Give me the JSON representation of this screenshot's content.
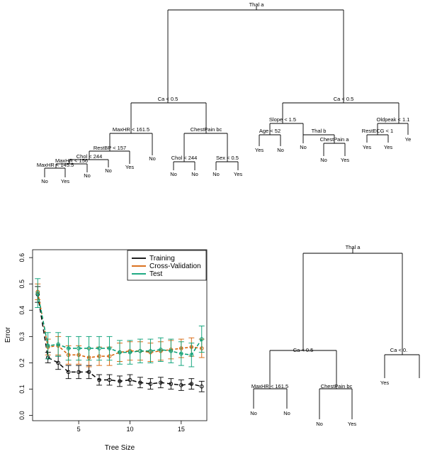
{
  "colors": {
    "training": "#000000",
    "cross_validation": "#D55E00",
    "test": "#009E73"
  },
  "top_tree": {
    "nodes": [
      {
        "id": "root",
        "label": "Thal a"
      },
      {
        "id": "L",
        "label": "Ca < 0.5"
      },
      {
        "id": "R",
        "label": "Ca < 0.5"
      },
      {
        "id": "LL",
        "label": "MaxHR < 161.5"
      },
      {
        "id": "LR",
        "label": "ChestPain bc"
      },
      {
        "id": "LLL",
        "label": "RestBP < 157"
      },
      {
        "id": "LLLL",
        "label": "Chol < 244"
      },
      {
        "id": "LLLLL",
        "label": "MaxHR < 156"
      },
      {
        "id": "LLLLLL",
        "label": "MaxHR < 145.5"
      },
      {
        "id": "LRL",
        "label": "Chol < 244"
      },
      {
        "id": "LRR",
        "label": "Sex < 0.5"
      },
      {
        "id": "RL",
        "label": "Slope < 1.5"
      },
      {
        "id": "RR",
        "label": "Oldpeak < 1.1"
      },
      {
        "id": "RLL",
        "label": "Age < 52"
      },
      {
        "id": "RLR",
        "label": "Thal b"
      },
      {
        "id": "RLRR",
        "label": "ChestPain a"
      },
      {
        "id": "RRL",
        "label": "RestECG < 1"
      }
    ],
    "leaves": [
      {
        "id": "t1",
        "label": "No"
      },
      {
        "id": "t2",
        "label": "Yes"
      },
      {
        "id": "t3",
        "label": "No"
      },
      {
        "id": "t4",
        "label": "No"
      },
      {
        "id": "t5",
        "label": "Yes"
      },
      {
        "id": "t6",
        "label": "No"
      },
      {
        "id": "t7",
        "label": "No"
      },
      {
        "id": "t8",
        "label": "No"
      },
      {
        "id": "t9",
        "label": "No"
      },
      {
        "id": "t10",
        "label": "Yes"
      },
      {
        "id": "t11",
        "label": "Yes"
      },
      {
        "id": "t12",
        "label": "No"
      },
      {
        "id": "t13",
        "label": "No"
      },
      {
        "id": "t14",
        "label": "No"
      },
      {
        "id": "t15",
        "label": "Yes"
      },
      {
        "id": "t16",
        "label": "Yes"
      },
      {
        "id": "t17",
        "label": "Yes"
      },
      {
        "id": "t18",
        "label": "Ye"
      }
    ]
  },
  "pruned_tree": {
    "nodes": [
      {
        "id": "root",
        "label": "Thal a"
      },
      {
        "id": "L",
        "label": "Ca < 0.5"
      },
      {
        "id": "R",
        "label": "Ca < 0."
      },
      {
        "id": "LL",
        "label": "MaxHR < 161.5"
      },
      {
        "id": "LR",
        "label": "ChestPain bc"
      }
    ],
    "leaves": [
      {
        "id": "p1",
        "label": "No"
      },
      {
        "id": "p2",
        "label": "No"
      },
      {
        "id": "p3",
        "label": "No"
      },
      {
        "id": "p4",
        "label": "Yes"
      },
      {
        "id": "p5",
        "label": "Yes"
      }
    ]
  },
  "chart_data": {
    "type": "line",
    "xlabel": "Tree Size",
    "ylabel": "Error",
    "xlim": [
      0.5,
      17.5
    ],
    "ylim": [
      -0.02,
      0.63
    ],
    "xticks": [
      5,
      10,
      15
    ],
    "yticks": [
      0.0,
      0.1,
      0.2,
      0.3,
      0.4,
      0.5,
      0.6
    ],
    "ytick_labels": [
      "0.0",
      "0.1",
      "0.2",
      "0.3",
      "0.4",
      "0.5",
      "0.6"
    ],
    "grid": false,
    "legend_position": "top-right",
    "x": [
      1,
      2,
      3,
      4,
      5,
      6,
      7,
      8,
      9,
      10,
      11,
      12,
      13,
      14,
      15,
      16,
      17
    ],
    "series": [
      {
        "name": "Training",
        "color_key": "training",
        "dash": "6,4",
        "values": [
          0.46,
          0.22,
          0.2,
          0.165,
          0.165,
          0.165,
          0.135,
          0.135,
          0.13,
          0.135,
          0.125,
          0.12,
          0.125,
          0.12,
          0.115,
          0.12,
          0.11
        ],
        "err": [
          0.03,
          0.02,
          0.025,
          0.025,
          0.025,
          0.025,
          0.02,
          0.02,
          0.02,
          0.02,
          0.02,
          0.02,
          0.02,
          0.02,
          0.02,
          0.02,
          0.02
        ]
      },
      {
        "name": "Cross-Validation",
        "color_key": "cross_validation",
        "dash": "4,3",
        "values": [
          0.47,
          0.26,
          0.265,
          0.23,
          0.23,
          0.22,
          0.225,
          0.225,
          0.24,
          0.245,
          0.245,
          0.24,
          0.245,
          0.25,
          0.255,
          0.26,
          0.255
        ],
        "err": [
          0.03,
          0.03,
          0.035,
          0.035,
          0.035,
          0.035,
          0.035,
          0.035,
          0.035,
          0.035,
          0.035,
          0.035,
          0.035,
          0.035,
          0.035,
          0.035,
          0.035
        ]
      },
      {
        "name": "Test",
        "color_key": "test",
        "dash": "5,3",
        "values": [
          0.465,
          0.265,
          0.27,
          0.255,
          0.255,
          0.255,
          0.255,
          0.255,
          0.24,
          0.24,
          0.245,
          0.245,
          0.25,
          0.245,
          0.235,
          0.23,
          0.29
        ],
        "err": [
          0.055,
          0.05,
          0.045,
          0.045,
          0.045,
          0.045,
          0.045,
          0.045,
          0.045,
          0.045,
          0.045,
          0.045,
          0.045,
          0.045,
          0.045,
          0.045,
          0.05
        ]
      }
    ]
  }
}
